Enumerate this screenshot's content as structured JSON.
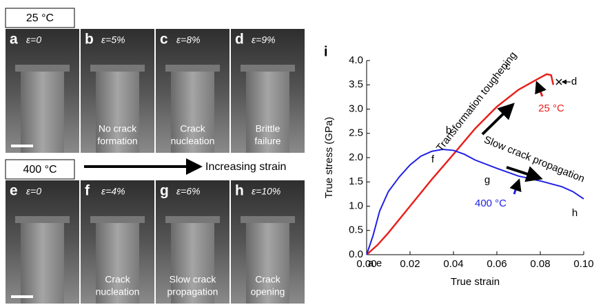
{
  "panels": {
    "top_label": "25 °C",
    "bottom_label": "400 °C",
    "strain_arrow": "Increasing strain",
    "items": [
      {
        "letter": "a",
        "strain": "ε=0",
        "note": []
      },
      {
        "letter": "b",
        "strain": "ε=5%",
        "note": [
          "No crack",
          "formation"
        ]
      },
      {
        "letter": "c",
        "strain": "ε=8%",
        "note": [
          "Crack",
          "nucleation"
        ]
      },
      {
        "letter": "d",
        "strain": "ε=9%",
        "note": [
          "Brittle",
          "failure"
        ]
      },
      {
        "letter": "e",
        "strain": "ε=0",
        "note": []
      },
      {
        "letter": "f",
        "strain": "ε=4%",
        "note": [
          "Crack",
          "nucleation"
        ]
      },
      {
        "letter": "g",
        "strain": "ε=6%",
        "note": [
          "Slow crack",
          "propagation"
        ]
      },
      {
        "letter": "h",
        "strain": "ε=10%",
        "note": [
          "Crack",
          "opening"
        ]
      }
    ]
  },
  "chart_data": {
    "type": "line",
    "panel_label": "i",
    "xlabel": "True strain",
    "ylabel": "True stress (GPa)",
    "xlim": [
      0,
      0.1
    ],
    "ylim": [
      0,
      4
    ],
    "xticks": [
      {
        "value": 0,
        "label": "0.00"
      },
      {
        "value": 0.02,
        "label": "0.02"
      },
      {
        "value": 0.04,
        "label": "0.04"
      },
      {
        "value": 0.06,
        "label": "0.06"
      },
      {
        "value": 0.08,
        "label": "0.08"
      },
      {
        "value": 0.1,
        "label": "0.10"
      }
    ],
    "yticks": [
      {
        "value": 0,
        "label": "0.0"
      },
      0.5,
      {
        "value": 1,
        "label": "1.0"
      },
      1.5,
      {
        "value": 2,
        "label": "2.0"
      },
      2.5,
      {
        "value": 3,
        "label": "3.0"
      },
      3.5,
      {
        "value": 4,
        "label": "4.0"
      }
    ],
    "series": [
      {
        "name": "25 °C",
        "color": "#e8201c",
        "x": [
          0,
          0.005,
          0.01,
          0.02,
          0.03,
          0.04,
          0.05,
          0.06,
          0.07,
          0.08,
          0.083,
          0.085,
          0.086
        ],
        "values": [
          0,
          0.2,
          0.45,
          1.0,
          1.55,
          2.07,
          2.6,
          3.05,
          3.4,
          3.65,
          3.72,
          3.7,
          3.5
        ]
      },
      {
        "name": "400 °C",
        "color": "#1f1fe6",
        "x": [
          0,
          0.003,
          0.006,
          0.01,
          0.015,
          0.02,
          0.025,
          0.03,
          0.035,
          0.04,
          0.045,
          0.05,
          0.06,
          0.07,
          0.08,
          0.09,
          0.095,
          0.1
        ],
        "values": [
          0,
          0.4,
          0.9,
          1.3,
          1.6,
          1.85,
          2.03,
          2.13,
          2.17,
          2.15,
          2.07,
          1.95,
          1.78,
          1.62,
          1.52,
          1.4,
          1.3,
          1.15
        ]
      }
    ],
    "annotations": [
      "Transformation toughening",
      "Slow crack propagation"
    ],
    "point_labels": [
      "a",
      "e",
      "b",
      "c",
      "d",
      "f",
      "g",
      "h"
    ]
  }
}
